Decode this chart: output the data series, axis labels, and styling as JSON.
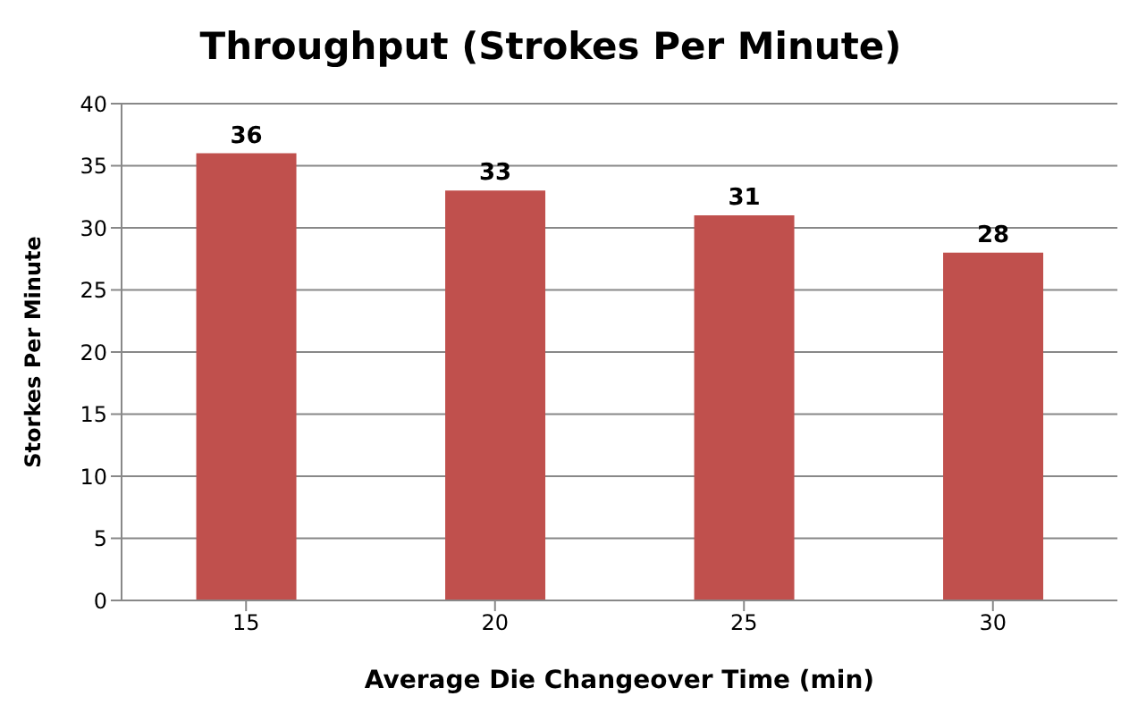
{
  "chart_data": {
    "type": "bar",
    "title": "Throughput (Strokes Per Minute)",
    "xlabel": "Average Die Changeover Time (min)",
    "ylabel": "Storkes Per Minute",
    "categories": [
      "15",
      "20",
      "25",
      "30"
    ],
    "values": [
      36,
      33,
      31,
      28
    ],
    "color": "#c0504d",
    "ylim": [
      0,
      40
    ],
    "yticks": [
      0,
      5,
      10,
      15,
      20,
      25,
      30,
      35,
      40
    ],
    "grid": "y",
    "data_labels": true
  }
}
